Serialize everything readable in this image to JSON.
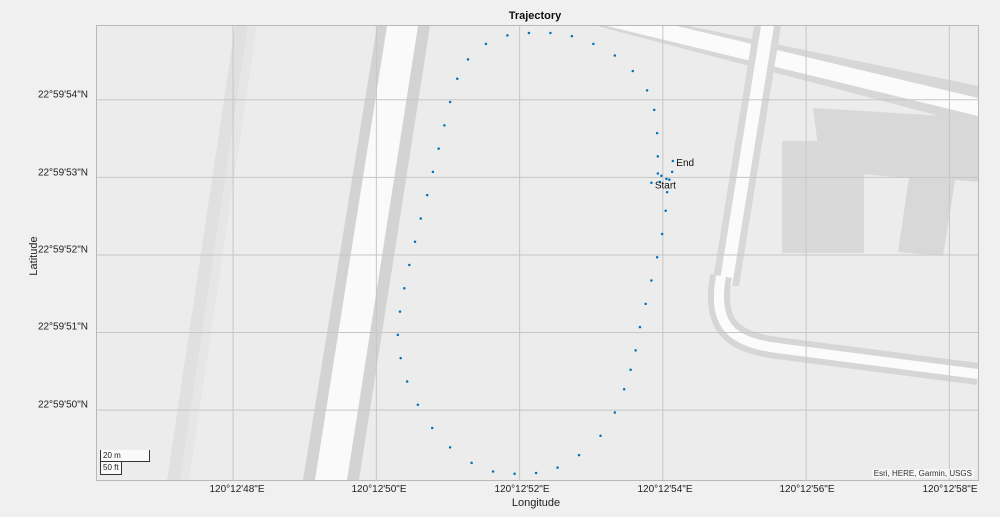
{
  "chart_data": {
    "type": "scatter",
    "title": "Trajectory",
    "xlabel": "Longitude",
    "ylabel": "Latitude",
    "x_ticks": [
      "120°12'48\"E",
      "120°12'50\"E",
      "120°12'52\"E",
      "120°12'54\"E",
      "120°12'56\"E",
      "120°12'58\"E"
    ],
    "y_ticks": [
      "22°59'54\"N",
      "22°59'53\"N",
      "22°59'52\"N",
      "22°59'51\"N",
      "22°59'50\"N"
    ],
    "x_tick_values_sec": [
      48,
      50,
      52,
      54,
      56,
      58
    ],
    "y_tick_values_sec": [
      54,
      53,
      52,
      51,
      50
    ],
    "xlim_sec": [
      46.1,
      58.4
    ],
    "ylim_sec": [
      49.1,
      54.95
    ],
    "grid": true,
    "series": [
      {
        "color": "#0072bd",
        "points": [
          [
            54.14,
            53.21
          ],
          [
            54.13,
            53.07
          ],
          [
            54.09,
            52.97
          ],
          [
            54.06,
            52.81
          ],
          [
            54.04,
            52.57
          ],
          [
            53.99,
            52.27
          ],
          [
            53.92,
            51.97
          ],
          [
            53.84,
            51.67
          ],
          [
            53.76,
            51.37
          ],
          [
            53.68,
            51.07
          ],
          [
            53.62,
            50.77
          ],
          [
            53.55,
            50.52
          ],
          [
            53.46,
            50.27
          ],
          [
            53.33,
            49.97
          ],
          [
            53.13,
            49.67
          ],
          [
            52.83,
            49.42
          ],
          [
            52.53,
            49.26
          ],
          [
            52.23,
            49.19
          ],
          [
            51.93,
            49.18
          ],
          [
            51.63,
            49.21
          ],
          [
            51.33,
            49.32
          ],
          [
            51.03,
            49.52
          ],
          [
            50.78,
            49.77
          ],
          [
            50.58,
            50.07
          ],
          [
            50.43,
            50.37
          ],
          [
            50.34,
            50.67
          ],
          [
            50.3,
            50.97
          ],
          [
            50.33,
            51.27
          ],
          [
            50.39,
            51.57
          ],
          [
            50.46,
            51.87
          ],
          [
            50.54,
            52.17
          ],
          [
            50.62,
            52.47
          ],
          [
            50.71,
            52.77
          ],
          [
            50.79,
            53.07
          ],
          [
            50.87,
            53.37
          ],
          [
            50.95,
            53.67
          ],
          [
            51.03,
            53.97
          ],
          [
            51.13,
            54.27
          ],
          [
            51.28,
            54.52
          ],
          [
            51.53,
            54.72
          ],
          [
            51.83,
            54.83
          ],
          [
            52.13,
            54.86
          ],
          [
            52.43,
            54.86
          ],
          [
            52.73,
            54.82
          ],
          [
            53.03,
            54.72
          ],
          [
            53.33,
            54.57
          ],
          [
            53.58,
            54.37
          ],
          [
            53.78,
            54.12
          ],
          [
            53.88,
            53.87
          ],
          [
            53.92,
            53.57
          ],
          [
            53.93,
            53.27
          ],
          [
            53.93,
            53.05
          ],
          [
            53.98,
            53.02
          ],
          [
            54.05,
            52.98
          ],
          [
            53.96,
            52.94
          ],
          [
            53.84,
            52.93
          ]
        ]
      }
    ],
    "annotations": [
      {
        "label": "End",
        "x": 54.16,
        "y": 53.2
      },
      {
        "label": "Start",
        "x": 53.86,
        "y": 52.91
      }
    ]
  },
  "map": {
    "attribution": "Esri, HERE, Garmin, USGS",
    "scale_top": "20 m",
    "scale_bottom": "50 ft"
  }
}
